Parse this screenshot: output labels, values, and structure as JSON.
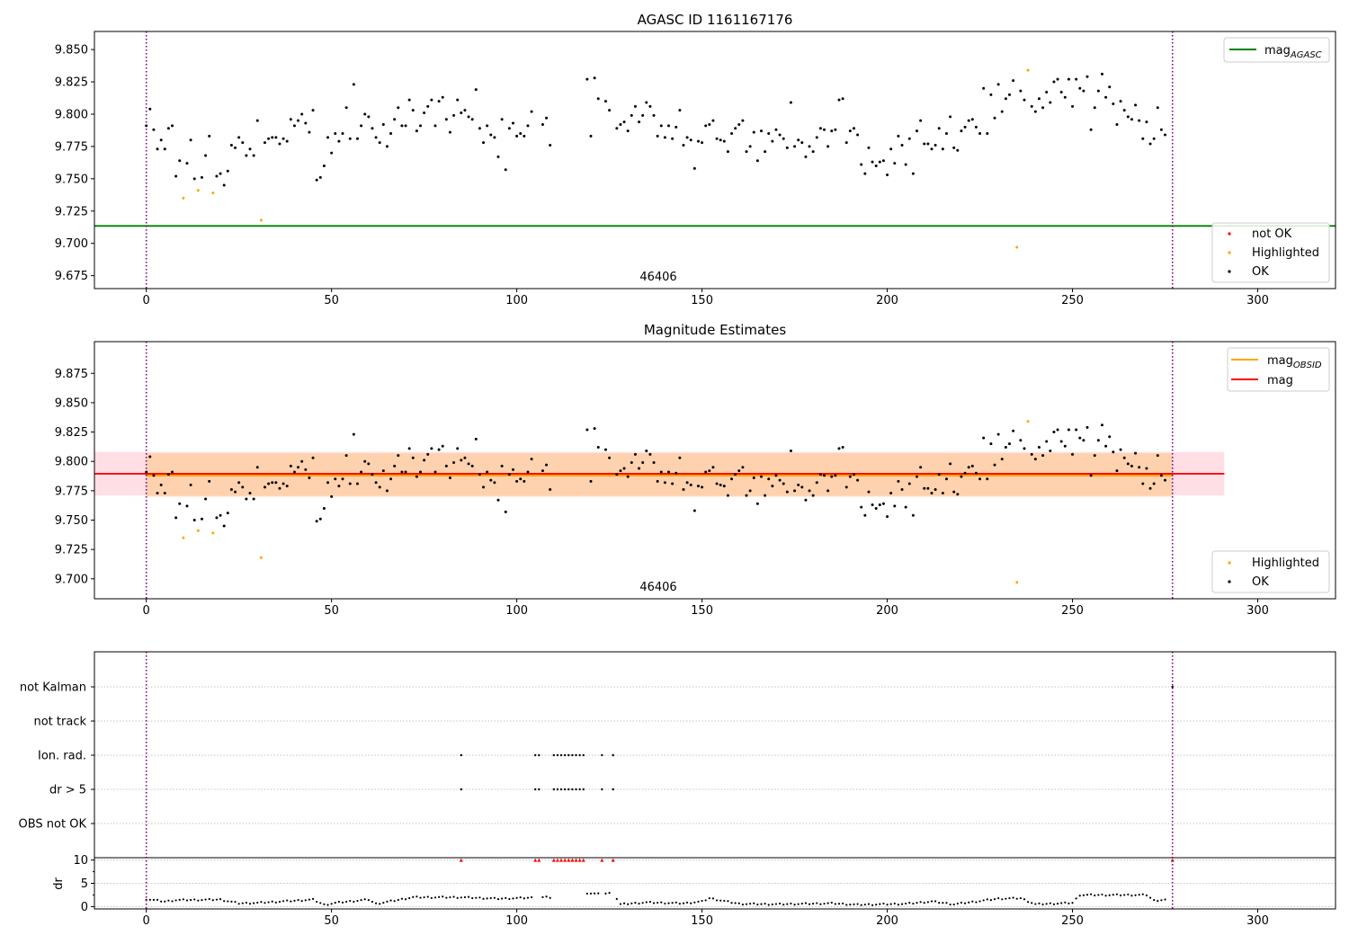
{
  "colors": {
    "ok": "#000000",
    "highlighted": "#ffa500",
    "not_ok": "#ff0000",
    "agasc_line": "#008000",
    "obsid_line": "#ffa500",
    "mag_line": "#ff0000",
    "mag_band": "#ffc0cb",
    "obsid_band": "#ffcc99",
    "vline": "#800080"
  },
  "chart_data": [
    {
      "type": "scatter",
      "title": "AGASC ID 1161167176",
      "annotation": "46406",
      "xlim": [
        -14,
        321
      ],
      "ylim": [
        9.665,
        9.864
      ],
      "xticks": [
        "0",
        "50",
        "100",
        "150",
        "200",
        "250",
        "300"
      ],
      "yticks": [
        "9.675",
        "9.700",
        "9.725",
        "9.750",
        "9.775",
        "9.800",
        "9.825",
        "9.850"
      ],
      "vlines": [
        0,
        277
      ],
      "hline": {
        "name": "mag",
        "sub": "AGASC",
        "y": 9.7135
      },
      "legend_lines": [
        {
          "name": "mag",
          "sub": "AGASC"
        }
      ],
      "legend_markers": [
        "not OK",
        "Highlighted",
        "OK"
      ],
      "ok_points": [
        [
          0,
          9.791
        ],
        [
          1,
          9.804
        ],
        [
          2,
          9.788
        ],
        [
          3,
          9.773
        ],
        [
          4,
          9.78
        ],
        [
          5,
          9.773
        ],
        [
          6,
          9.789
        ],
        [
          7,
          9.791
        ],
        [
          8,
          9.752
        ],
        [
          9,
          9.764
        ],
        [
          11,
          9.762
        ],
        [
          12,
          9.78
        ],
        [
          13,
          9.75
        ],
        [
          15,
          9.751
        ],
        [
          16,
          9.768
        ],
        [
          17,
          9.783
        ],
        [
          19,
          9.752
        ],
        [
          20,
          9.754
        ],
        [
          21,
          9.745
        ],
        [
          22,
          9.756
        ],
        [
          23,
          9.776
        ],
        [
          24,
          9.774
        ],
        [
          25,
          9.782
        ],
        [
          26,
          9.778
        ],
        [
          27,
          9.768
        ],
        [
          28,
          9.773
        ],
        [
          29,
          9.768
        ],
        [
          30,
          9.795
        ],
        [
          32,
          9.778
        ],
        [
          33,
          9.781
        ],
        [
          34,
          9.782
        ],
        [
          35,
          9.782
        ],
        [
          36,
          9.777
        ],
        [
          37,
          9.781
        ],
        [
          38,
          9.779
        ],
        [
          39,
          9.796
        ],
        [
          40,
          9.791
        ],
        [
          41,
          9.795
        ],
        [
          42,
          9.8
        ],
        [
          43,
          9.793
        ],
        [
          44,
          9.786
        ],
        [
          45,
          9.803
        ],
        [
          46,
          9.749
        ],
        [
          47,
          9.751
        ],
        [
          48,
          9.76
        ],
        [
          49,
          9.782
        ],
        [
          50,
          9.77
        ],
        [
          51,
          9.785
        ],
        [
          52,
          9.779
        ],
        [
          53,
          9.785
        ],
        [
          54,
          9.805
        ],
        [
          55,
          9.781
        ],
        [
          56,
          9.823
        ],
        [
          57,
          9.781
        ],
        [
          58,
          9.791
        ],
        [
          59,
          9.8
        ],
        [
          60,
          9.798
        ],
        [
          61,
          9.789
        ],
        [
          62,
          9.782
        ],
        [
          63,
          9.778
        ],
        [
          64,
          9.792
        ],
        [
          65,
          9.775
        ],
        [
          66,
          9.785
        ],
        [
          67,
          9.796
        ],
        [
          68,
          9.805
        ],
        [
          69,
          9.791
        ],
        [
          70,
          9.791
        ],
        [
          71,
          9.811
        ],
        [
          72,
          9.803
        ],
        [
          73,
          9.787
        ],
        [
          74,
          9.791
        ],
        [
          75,
          9.801
        ],
        [
          76,
          9.806
        ],
        [
          77,
          9.811
        ],
        [
          78,
          9.791
        ],
        [
          79,
          9.81
        ],
        [
          80,
          9.813
        ],
        [
          81,
          9.796
        ],
        [
          82,
          9.786
        ],
        [
          83,
          9.799
        ],
        [
          84,
          9.811
        ],
        [
          85,
          9.801
        ],
        [
          86,
          9.803
        ],
        [
          87,
          9.798
        ],
        [
          88,
          9.796
        ],
        [
          89,
          9.819
        ],
        [
          90,
          9.789
        ],
        [
          91,
          9.778
        ],
        [
          92,
          9.791
        ],
        [
          93,
          9.784
        ],
        [
          94,
          9.782
        ],
        [
          95,
          9.767
        ],
        [
          96,
          9.796
        ],
        [
          97,
          9.757
        ],
        [
          98,
          9.789
        ],
        [
          99,
          9.793
        ],
        [
          100,
          9.783
        ],
        [
          101,
          9.785
        ],
        [
          102,
          9.783
        ],
        [
          103,
          9.791
        ],
        [
          104,
          9.802
        ],
        [
          107,
          9.792
        ],
        [
          108,
          9.797
        ],
        [
          109,
          9.776
        ],
        [
          119,
          9.827
        ],
        [
          120,
          9.783
        ],
        [
          121,
          9.828
        ],
        [
          122,
          9.812
        ],
        [
          124,
          9.81
        ],
        [
          125,
          9.803
        ],
        [
          127,
          9.789
        ],
        [
          128,
          9.792
        ],
        [
          129,
          9.794
        ],
        [
          130,
          9.787
        ],
        [
          131,
          9.799
        ],
        [
          132,
          9.806
        ],
        [
          133,
          9.794
        ],
        [
          134,
          9.799
        ],
        [
          135,
          9.809
        ],
        [
          136,
          9.806
        ],
        [
          137,
          9.799
        ],
        [
          138,
          9.783
        ],
        [
          139,
          9.791
        ],
        [
          140,
          9.782
        ],
        [
          141,
          9.791
        ],
        [
          142,
          9.781
        ],
        [
          143,
          9.79
        ],
        [
          144,
          9.803
        ],
        [
          145,
          9.776
        ],
        [
          146,
          9.782
        ],
        [
          147,
          9.78
        ],
        [
          148,
          9.758
        ],
        [
          149,
          9.779
        ],
        [
          150,
          9.778
        ],
        [
          151,
          9.791
        ],
        [
          152,
          9.792
        ],
        [
          153,
          9.795
        ],
        [
          154,
          9.781
        ],
        [
          155,
          9.78
        ],
        [
          156,
          9.779
        ],
        [
          157,
          9.771
        ],
        [
          158,
          9.785
        ],
        [
          159,
          9.789
        ],
        [
          160,
          9.792
        ],
        [
          161,
          9.795
        ],
        [
          162,
          9.771
        ],
        [
          163,
          9.775
        ],
        [
          164,
          9.786
        ],
        [
          165,
          9.764
        ],
        [
          166,
          9.787
        ],
        [
          167,
          9.771
        ],
        [
          168,
          9.785
        ],
        [
          169,
          9.779
        ],
        [
          170,
          9.788
        ],
        [
          171,
          9.784
        ],
        [
          172,
          9.781
        ],
        [
          173,
          9.774
        ],
        [
          174,
          9.809
        ],
        [
          175,
          9.775
        ],
        [
          176,
          9.78
        ],
        [
          177,
          9.778
        ],
        [
          178,
          9.767
        ],
        [
          179,
          9.775
        ],
        [
          180,
          9.771
        ],
        [
          181,
          9.782
        ],
        [
          182,
          9.789
        ],
        [
          183,
          9.788
        ],
        [
          184,
          9.775
        ],
        [
          185,
          9.787
        ],
        [
          186,
          9.788
        ],
        [
          187,
          9.811
        ],
        [
          188,
          9.812
        ],
        [
          189,
          9.778
        ],
        [
          190,
          9.787
        ],
        [
          191,
          9.789
        ],
        [
          192,
          9.784
        ],
        [
          193,
          9.761
        ],
        [
          194,
          9.754
        ],
        [
          195,
          9.774
        ],
        [
          196,
          9.763
        ],
        [
          197,
          9.76
        ],
        [
          198,
          9.763
        ],
        [
          199,
          9.764
        ],
        [
          200,
          9.753
        ],
        [
          201,
          9.773
        ],
        [
          202,
          9.762
        ],
        [
          203,
          9.783
        ],
        [
          204,
          9.776
        ],
        [
          205,
          9.761
        ],
        [
          206,
          9.781
        ],
        [
          207,
          9.754
        ],
        [
          208,
          9.787
        ],
        [
          209,
          9.795
        ],
        [
          210,
          9.777
        ],
        [
          211,
          9.777
        ],
        [
          212,
          9.773
        ],
        [
          213,
          9.776
        ],
        [
          214,
          9.789
        ],
        [
          215,
          9.773
        ],
        [
          216,
          9.785
        ],
        [
          217,
          9.798
        ],
        [
          218,
          9.774
        ],
        [
          219,
          9.772
        ],
        [
          220,
          9.787
        ],
        [
          221,
          9.79
        ],
        [
          222,
          9.795
        ],
        [
          223,
          9.796
        ],
        [
          224,
          9.79
        ],
        [
          225,
          9.785
        ],
        [
          226,
          9.82
        ],
        [
          227,
          9.785
        ],
        [
          228,
          9.815
        ],
        [
          229,
          9.797
        ],
        [
          230,
          9.823
        ],
        [
          231,
          9.802
        ],
        [
          232,
          9.812
        ],
        [
          233,
          9.815
        ],
        [
          234,
          9.826
        ],
        [
          236,
          9.818
        ],
        [
          237,
          9.811
        ],
        [
          239,
          9.806
        ],
        [
          240,
          9.802
        ],
        [
          241,
          9.812
        ],
        [
          242,
          9.805
        ],
        [
          243,
          9.817
        ],
        [
          244,
          9.809
        ],
        [
          245,
          9.825
        ],
        [
          246,
          9.827
        ],
        [
          247,
          9.817
        ],
        [
          248,
          9.813
        ],
        [
          249,
          9.827
        ],
        [
          250,
          9.806
        ],
        [
          251,
          9.827
        ],
        [
          252,
          9.82
        ],
        [
          253,
          9.818
        ],
        [
          254,
          9.829
        ],
        [
          255,
          9.788
        ],
        [
          256,
          9.805
        ],
        [
          257,
          9.818
        ],
        [
          258,
          9.831
        ],
        [
          259,
          9.813
        ],
        [
          260,
          9.821
        ],
        [
          261,
          9.808
        ],
        [
          262,
          9.792
        ],
        [
          263,
          9.81
        ],
        [
          264,
          9.803
        ],
        [
          265,
          9.798
        ],
        [
          266,
          9.796
        ],
        [
          267,
          9.807
        ],
        [
          268,
          9.795
        ],
        [
          269,
          9.781
        ],
        [
          270,
          9.794
        ],
        [
          271,
          9.777
        ],
        [
          272,
          9.781
        ],
        [
          273,
          9.805
        ],
        [
          274,
          9.788
        ],
        [
          275,
          9.784
        ]
      ],
      "highlighted_points": [
        [
          10,
          9.735
        ],
        [
          14,
          9.741
        ],
        [
          18,
          9.739
        ],
        [
          31,
          9.718
        ],
        [
          235,
          9.697
        ],
        [
          238,
          9.834
        ]
      ],
      "not_ok_points": []
    },
    {
      "type": "scatter",
      "title": "Magnitude Estimates",
      "annotation": "46406",
      "xlim": [
        -14,
        321
      ],
      "ylim": [
        9.683,
        9.902
      ],
      "xticks": [
        "0",
        "50",
        "100",
        "150",
        "200",
        "250",
        "300"
      ],
      "yticks": [
        "9.700",
        "9.725",
        "9.750",
        "9.775",
        "9.800",
        "9.825",
        "9.850",
        "9.875"
      ],
      "vlines": [
        0,
        277
      ],
      "mag": {
        "name": "mag",
        "y": 9.7895,
        "band": [
          9.771,
          9.808
        ],
        "xrange": [
          -14,
          291
        ]
      },
      "mag_obsid": {
        "name": "mag",
        "sub": "OBSID",
        "y": 9.788,
        "band": [
          9.77,
          9.807
        ],
        "xrange": [
          0,
          277
        ]
      },
      "legend_lines": [
        {
          "name": "mag",
          "sub": "OBSID"
        },
        {
          "name": "mag",
          "sub": ""
        }
      ],
      "legend_markers": [
        "Highlighted",
        "OK"
      ]
    },
    {
      "type": "scatter",
      "ylabel": "dr",
      "xlim": [
        -14,
        321
      ],
      "xticks": [
        "0",
        "50",
        "100",
        "150",
        "200",
        "250",
        "300"
      ],
      "flag_rows": [
        "not Kalman",
        "not track",
        "Ion. rad.",
        "dr > 5",
        "OBS not OK"
      ],
      "flag_points": {
        "not Kalman": [
          277
        ],
        "not track": [],
        "Ion. rad.": [
          85,
          105,
          106,
          110,
          111,
          112,
          113,
          114,
          115,
          116,
          117,
          118,
          123,
          126
        ],
        "dr > 5": [
          85,
          105,
          106,
          110,
          111,
          112,
          113,
          114,
          115,
          116,
          117,
          118,
          123,
          126
        ],
        "OBS not OK": []
      },
      "dr_ylim": [
        -0.5,
        10.5
      ],
      "dr_yticks": [
        "0",
        "5",
        "10"
      ],
      "dr_clipped_x": [
        85,
        105,
        106,
        110,
        111,
        112,
        113,
        114,
        115,
        116,
        117,
        118,
        123,
        126,
        277
      ]
    }
  ]
}
